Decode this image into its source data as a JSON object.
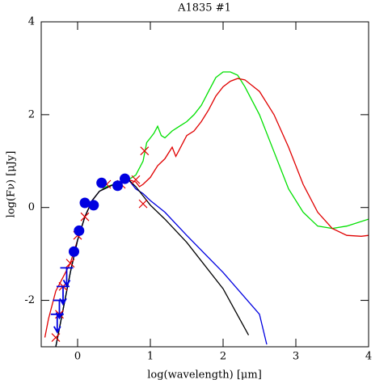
{
  "chart_data": {
    "type": "line",
    "title": "A1835 #1",
    "xlabel": "log(wavelength) [μm]",
    "ylabel": "log(Fν) [μJy]",
    "xlim": [
      -0.5,
      4
    ],
    "ylim": [
      -3,
      4
    ],
    "xticks": [
      0,
      1,
      2,
      3,
      4
    ],
    "yticks": [
      -2,
      0,
      2,
      4
    ],
    "series": [
      {
        "kind": "line",
        "color": "#00e000",
        "x": [
          -0.3,
          -0.2,
          -0.1,
          0,
          0.1,
          0.2,
          0.3,
          0.4,
          0.5,
          0.6,
          0.7,
          0.8,
          0.9,
          0.95,
          1.0,
          1.05,
          1.1,
          1.15,
          1.2,
          1.3,
          1.4,
          1.5,
          1.6,
          1.7,
          1.8,
          1.9,
          2.0,
          2.1,
          2.2,
          2.3,
          2.5,
          2.7,
          2.9,
          3.1,
          3.3,
          3.5,
          3.7,
          4.0
        ],
        "values": [
          -3,
          -2.2,
          -1.4,
          -0.7,
          -0.2,
          0.15,
          0.35,
          0.45,
          0.5,
          0.55,
          0.6,
          0.7,
          1.0,
          1.4,
          1.5,
          1.6,
          1.75,
          1.55,
          1.5,
          1.65,
          1.75,
          1.85,
          2.0,
          2.2,
          2.5,
          2.8,
          2.92,
          2.92,
          2.85,
          2.6,
          2.0,
          1.2,
          0.4,
          -0.1,
          -0.4,
          -0.45,
          -0.4,
          -0.25
        ]
      },
      {
        "kind": "line",
        "color": "#e00000",
        "x": [
          -0.45,
          -0.4,
          -0.3,
          -0.2,
          -0.1,
          0,
          0.1,
          0.2,
          0.3,
          0.5,
          0.7,
          0.8,
          0.85,
          0.9,
          1.0,
          1.1,
          1.2,
          1.3,
          1.35,
          1.4,
          1.5,
          1.6,
          1.7,
          1.8,
          1.9,
          2.0,
          2.1,
          2.2,
          2.3,
          2.5,
          2.7,
          2.9,
          3.1,
          3.3,
          3.5,
          3.7,
          3.9,
          4.0
        ],
        "values": [
          -2.8,
          -2.4,
          -1.8,
          -1.5,
          -1.2,
          -0.7,
          -0.2,
          0.15,
          0.35,
          0.5,
          0.6,
          0.55,
          0.45,
          0.5,
          0.65,
          0.9,
          1.05,
          1.3,
          1.1,
          1.25,
          1.55,
          1.65,
          1.85,
          2.1,
          2.4,
          2.6,
          2.72,
          2.78,
          2.75,
          2.5,
          2.0,
          1.3,
          0.5,
          -0.1,
          -0.45,
          -0.6,
          -0.62,
          -0.6
        ]
      },
      {
        "kind": "line",
        "color": "#0000e0",
        "x": [
          -0.3,
          -0.2,
          -0.1,
          0,
          0.1,
          0.2,
          0.3,
          0.5,
          0.7,
          0.8,
          0.9,
          1.0,
          1.2,
          1.5,
          2.0,
          2.5,
          2.6
        ],
        "values": [
          -3,
          -2.2,
          -1.4,
          -0.7,
          -0.2,
          0.15,
          0.35,
          0.5,
          0.6,
          0.4,
          0.3,
          0.15,
          -0.1,
          -0.6,
          -1.4,
          -2.3,
          -2.95
        ]
      },
      {
        "kind": "line",
        "color": "#000000",
        "x": [
          -0.3,
          -0.2,
          -0.1,
          0,
          0.1,
          0.2,
          0.3,
          0.5,
          0.7,
          0.8,
          0.9,
          1.0,
          1.2,
          1.5,
          2.0,
          2.35
        ],
        "values": [
          -3,
          -2.2,
          -1.4,
          -0.7,
          -0.2,
          0.15,
          0.35,
          0.5,
          0.6,
          0.45,
          0.25,
          0.05,
          -0.25,
          -0.75,
          -1.75,
          -2.75
        ]
      },
      {
        "kind": "cross",
        "color": "#e00000",
        "x": [
          0.92,
          0.9,
          0.8,
          0.6,
          0.4,
          0.1,
          0,
          -0.1,
          -0.2,
          -0.25,
          -0.3
        ],
        "values": [
          1.22,
          0.08,
          0.6,
          0.5,
          0.5,
          -0.2,
          -0.6,
          -1.2,
          -1.7,
          -2.3,
          -2.8
        ]
      },
      {
        "kind": "upper-limit",
        "color": "#0000e0",
        "x": [
          -0.15,
          -0.2,
          -0.25,
          -0.28
        ],
        "values": [
          -1.3,
          -1.7,
          -2.0,
          -2.3
        ]
      },
      {
        "kind": "circle",
        "color": "#0000e0",
        "x": [
          -0.05,
          0.02,
          0.1,
          0.22,
          0.33,
          0.55,
          0.65
        ],
        "values": [
          -0.95,
          -0.5,
          0.1,
          0.05,
          0.53,
          0.47,
          0.62
        ]
      }
    ]
  }
}
